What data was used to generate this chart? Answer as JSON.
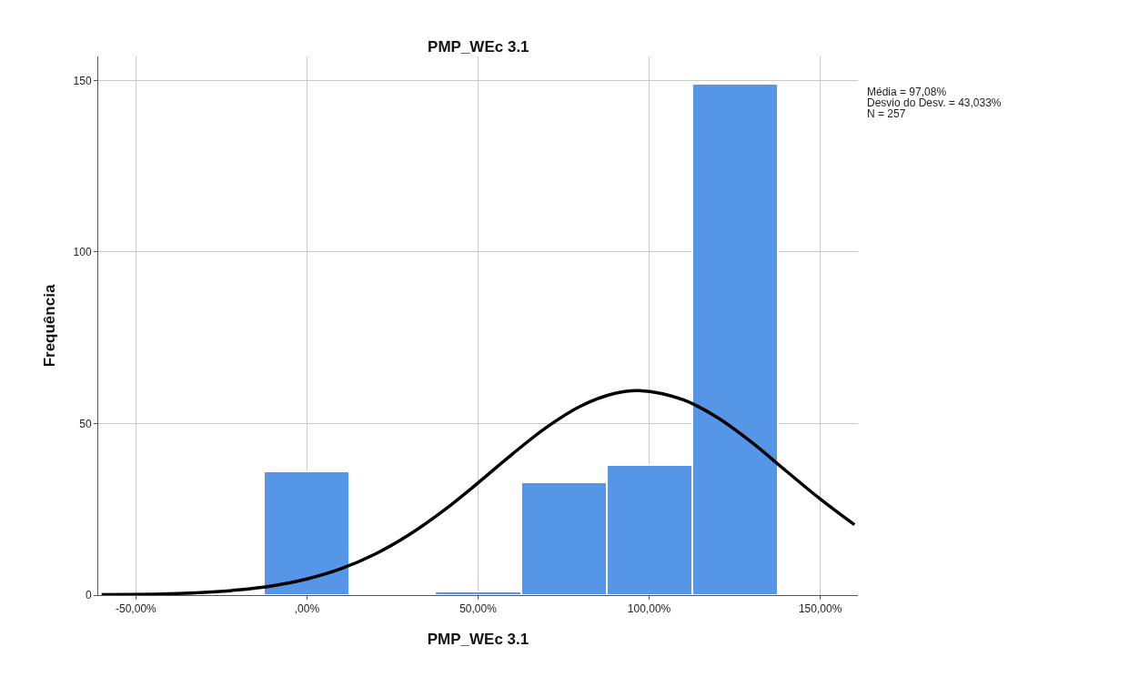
{
  "chart_data": {
    "type": "histogram",
    "title": "PMP_WEc 3.1",
    "xlabel": "PMP_WEc 3.1",
    "ylabel": "Frequência",
    "bins": [
      -12.5,
      12.5,
      37.5,
      62.5,
      87.5,
      112.5,
      137.5
    ],
    "values": [
      36,
      0,
      1,
      33,
      38,
      149
    ],
    "color": "#5596e6",
    "series": [
      {
        "type": "line",
        "color": "#000000",
        "x": [
          -60,
          -50,
          -40,
          -30,
          -20,
          -10,
          0,
          10,
          20,
          30,
          40,
          50,
          60,
          70,
          80,
          90,
          97.08,
          110,
          120,
          130,
          140,
          150,
          160
        ],
        "values": [
          0.1,
          0.2,
          0.4,
          0.8,
          1.5,
          2.7,
          4.7,
          7.7,
          12.0,
          17.7,
          24.7,
          32.7,
          41.1,
          48.9,
          55.1,
          58.8,
          59.6,
          56.9,
          51.7,
          44.5,
          36.2,
          28.0,
          20.5
        ]
      }
    ],
    "xlim": [
      -61,
      161
    ],
    "ylim": [
      0,
      157
    ],
    "xticks": [
      {
        "value": -50,
        "label": "-50,00%"
      },
      {
        "value": 0,
        "label": ",00%"
      },
      {
        "value": 50,
        "label": "50,00%"
      },
      {
        "value": 100,
        "label": "100,00%"
      },
      {
        "value": 150,
        "label": "150,00%"
      }
    ],
    "yticks": [
      0,
      50,
      100,
      150
    ],
    "grid": true,
    "annotations": [
      "Média = 97,08%",
      "Desvio do Desv. = 43,033%",
      "N = 257"
    ]
  }
}
